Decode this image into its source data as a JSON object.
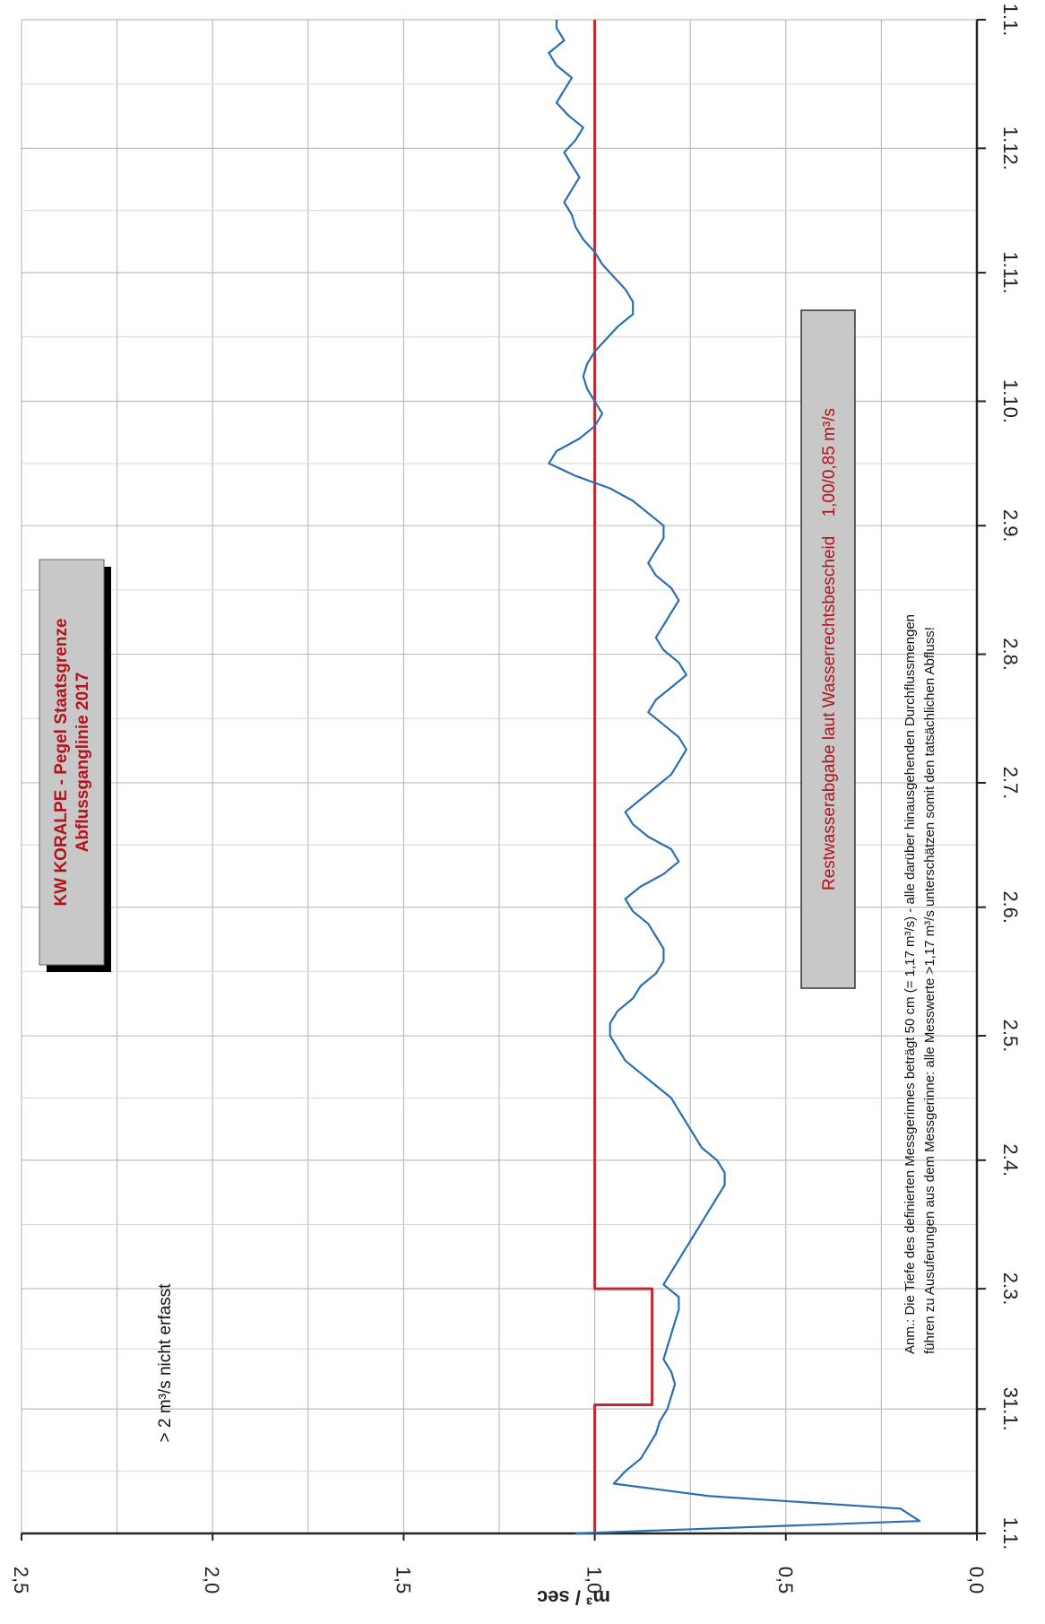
{
  "chart_data": {
    "type": "line",
    "orientation": "rotated-90-clockwise",
    "title_lines": [
      "KW KORALPE - Pegel Staatsgrenze",
      "Abflussganglinie 2017"
    ],
    "ylabel": "m³ / sec",
    "xlabel": "",
    "ylim": [
      0,
      2.5
    ],
    "y_ticks": [
      "0,0",
      "0,5",
      "1,0",
      "1,5",
      "2,0",
      "2,5"
    ],
    "x_tick_labels": [
      "1.1.",
      "31.1.",
      "2.3.",
      "2.4.",
      "2.5.",
      "2.6.",
      "2.7.",
      "2.8.",
      "2.9.",
      "1.10.",
      "1.11.",
      "1.12.",
      "1.1."
    ],
    "grid": true,
    "annotations": {
      "not_recorded": "> 2 m³/s nicht erfasst",
      "restwasser_label": "Restwasserabgabe laut Wasserrechtsbescheid",
      "restwasser_values": "1,00/0,85 m³/s",
      "note_line1": "Anm.: Die Tiefe des definierten Messgerinnes beträgt 50 cm (= 1,17 m³/s) - alle darüber hinausgehenden Durchflussmengen",
      "note_line2": "führen zu Ausuferungen aus dem Messgerinne: alle Messwerte >1,17 m³/s unterschätzen somit den tatsächlichen Abfluss!"
    },
    "series": [
      {
        "kind": "step",
        "color": "#c0282f",
        "x_day": [
          0,
          31,
          31,
          59,
          59,
          365
        ],
        "values": [
          1.0,
          1.0,
          0.85,
          0.85,
          1.0,
          1.0
        ]
      },
      {
        "kind": "line",
        "color": "#2a6fb0",
        "x_day": [
          0,
          3,
          6,
          9,
          12,
          15,
          18,
          21,
          24,
          27,
          30,
          33,
          36,
          39,
          42,
          45,
          48,
          51,
          54,
          57,
          60,
          63,
          66,
          69,
          72,
          75,
          78,
          81,
          84,
          87,
          90,
          93,
          96,
          99,
          102,
          105,
          108,
          111,
          114,
          117,
          120,
          123,
          126,
          129,
          132,
          135,
          138,
          141,
          144,
          147,
          150,
          153,
          156,
          159,
          162,
          165,
          168,
          171,
          174,
          177,
          180,
          183,
          186,
          189,
          192,
          195,
          198,
          201,
          204,
          207,
          210,
          213,
          216,
          219,
          222,
          225,
          228,
          231,
          234,
          237,
          240,
          243,
          246,
          249,
          252,
          255,
          258,
          261,
          264,
          267,
          270,
          273,
          276,
          279,
          282,
          285,
          288,
          291,
          294,
          297,
          300,
          303,
          306,
          309,
          312,
          315,
          318,
          321,
          324,
          327,
          330,
          333,
          336,
          339,
          342,
          345,
          348,
          351,
          354,
          357,
          360,
          363,
          365
        ],
        "values": [
          1.05,
          0.15,
          0.2,
          0.7,
          0.95,
          0.92,
          0.88,
          0.86,
          0.84,
          0.83,
          0.81,
          0.8,
          0.79,
          0.8,
          0.82,
          0.81,
          0.8,
          0.79,
          0.78,
          0.78,
          0.82,
          0.8,
          0.78,
          0.76,
          0.74,
          0.72,
          0.7,
          0.68,
          0.66,
          0.66,
          0.68,
          0.72,
          0.74,
          0.76,
          0.78,
          0.8,
          0.84,
          0.88,
          0.92,
          0.94,
          0.96,
          0.96,
          0.94,
          0.9,
          0.88,
          0.84,
          0.82,
          0.82,
          0.84,
          0.86,
          0.9,
          0.92,
          0.88,
          0.82,
          0.78,
          0.8,
          0.86,
          0.9,
          0.92,
          0.88,
          0.84,
          0.8,
          0.78,
          0.76,
          0.78,
          0.82,
          0.86,
          0.84,
          0.8,
          0.76,
          0.78,
          0.82,
          0.84,
          0.82,
          0.8,
          0.78,
          0.8,
          0.84,
          0.86,
          0.84,
          0.82,
          0.82,
          0.86,
          0.9,
          0.96,
          1.05,
          1.12,
          1.1,
          1.04,
          1.0,
          0.98,
          1.0,
          1.02,
          1.03,
          1.02,
          1.0,
          0.97,
          0.94,
          0.9,
          0.9,
          0.92,
          0.95,
          0.98,
          1.0,
          1.03,
          1.05,
          1.06,
          1.08,
          1.06,
          1.04,
          1.06,
          1.08,
          1.05,
          1.03,
          1.07,
          1.1,
          1.08,
          1.06,
          1.1,
          1.12,
          1.08,
          1.1,
          1.1
        ]
      }
    ]
  }
}
